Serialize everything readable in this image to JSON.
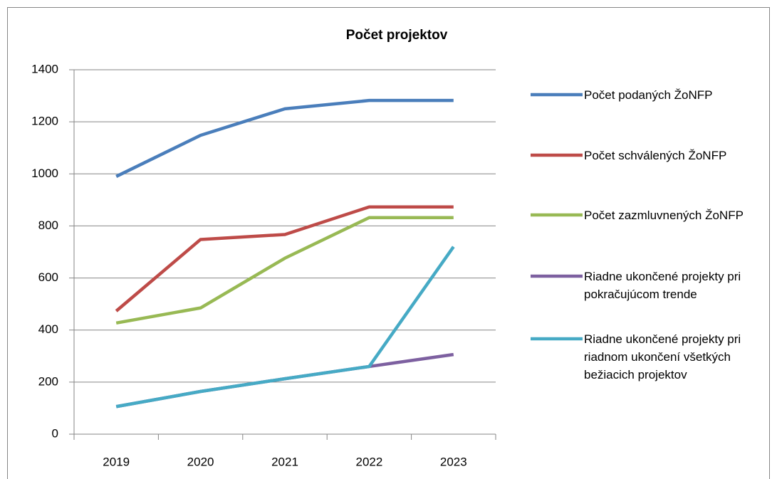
{
  "chart_data": {
    "type": "line",
    "title": "Počet projektov",
    "categories": [
      "2019",
      "2020",
      "2021",
      "2022",
      "2023"
    ],
    "series": [
      {
        "name": "Počet podaných ŽoNFP",
        "color": "#4a7ebb",
        "values": [
          990,
          1148,
          1250,
          1282,
          1282
        ]
      },
      {
        "name": "Počet schválených ŽoNFP",
        "color": "#be4b48",
        "values": [
          473,
          748,
          767,
          873,
          873
        ]
      },
      {
        "name": "Počet zazmluvnených ŽoNFP",
        "color": "#98b954",
        "values": [
          427,
          485,
          676,
          832,
          832
        ]
      },
      {
        "name": "Riadne ukončené projekty pri pokračujúcom trende",
        "color": "#7d60a0",
        "values": [
          106,
          164,
          213,
          260,
          306
        ]
      },
      {
        "name": "Riadne ukončené projekty pri riadnom ukončení všetkých bežiacich projektov",
        "color": "#46aac5",
        "values": [
          106,
          164,
          213,
          260,
          720
        ]
      }
    ],
    "ylim": [
      0,
      1400
    ],
    "yticks": [
      0,
      200,
      400,
      600,
      800,
      1000,
      1200,
      1400
    ],
    "grid": true,
    "legend": "right"
  }
}
